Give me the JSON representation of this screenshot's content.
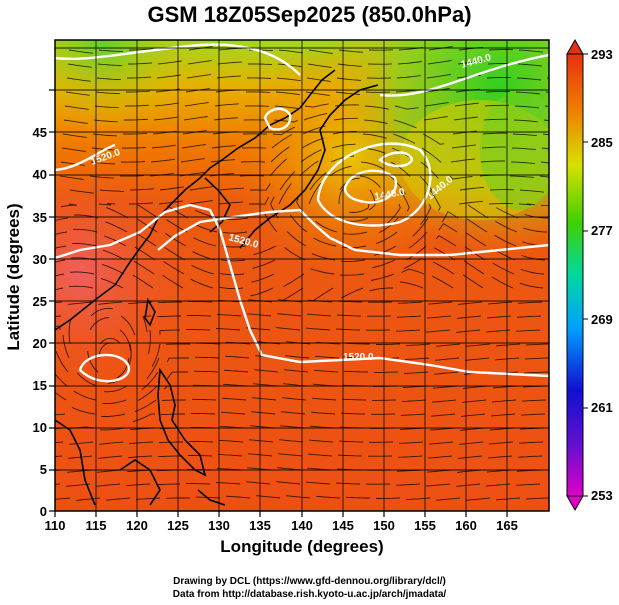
{
  "title": "GSM 18Z05Sep2025 (850.0hPa)",
  "x_axis": {
    "label": "Longitude (degrees)",
    "ticks": [
      "110",
      "115",
      "120",
      "125",
      "130",
      "135",
      "140",
      "145",
      "150",
      "155",
      "160",
      "165"
    ]
  },
  "y_axis": {
    "label": "Latitude  (degrees)",
    "ticks": [
      "0",
      "5",
      "10",
      "15",
      "20",
      "25",
      "30",
      "35",
      "40",
      "45"
    ]
  },
  "colorbar": {
    "ticks": [
      "253",
      "261",
      "269",
      "277",
      "285",
      "293"
    ],
    "colors": [
      "#e000c8",
      "#1010d0",
      "#00a0ff",
      "#00d8a0",
      "#40d000",
      "#f0e000",
      "#f08000",
      "#e83010"
    ]
  },
  "contour_labels": [
    "1520.0",
    "1520.0",
    "1520.0",
    "1440.0",
    "1440.0",
    "1440.0"
  ],
  "credits": {
    "line1": "Drawing by DCL (https://www.gfd-dennou.org/library/dcl/)",
    "line2": "Data from http://database.rish.kyoto-u.ac.jp/arch/jmadata/"
  }
}
